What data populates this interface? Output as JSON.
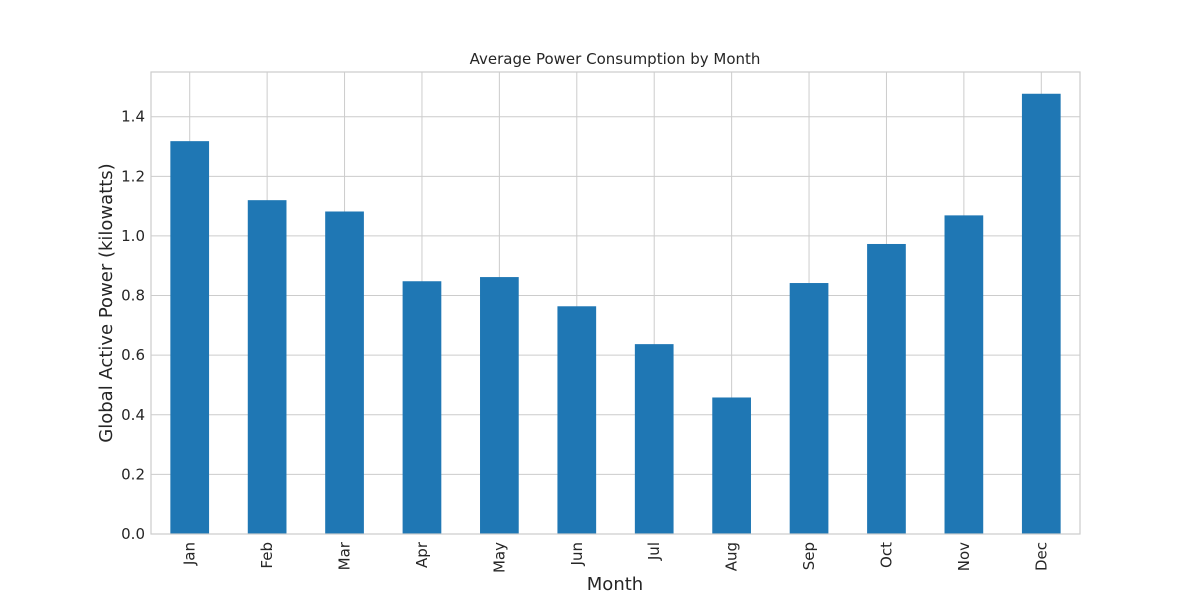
{
  "chart_data": {
    "type": "bar",
    "title": "Average Power Consumption by Month",
    "xlabel": "Month",
    "ylabel": "Global Active Power (kilowatts)",
    "categories": [
      "Jan",
      "Feb",
      "Mar",
      "Apr",
      "May",
      "Jun",
      "Jul",
      "Aug",
      "Sep",
      "Oct",
      "Nov",
      "Dec"
    ],
    "values": [
      1.318,
      1.12,
      1.082,
      0.848,
      0.862,
      0.764,
      0.637,
      0.458,
      0.842,
      0.973,
      1.069,
      1.477
    ],
    "ylim": [
      0,
      1.55
    ],
    "yticks": [
      "0.0",
      "0.2",
      "0.4",
      "0.6",
      "0.8",
      "1.0",
      "1.2",
      "1.4"
    ],
    "bar_color": "#1f77b4",
    "grid": true,
    "legend": false
  }
}
